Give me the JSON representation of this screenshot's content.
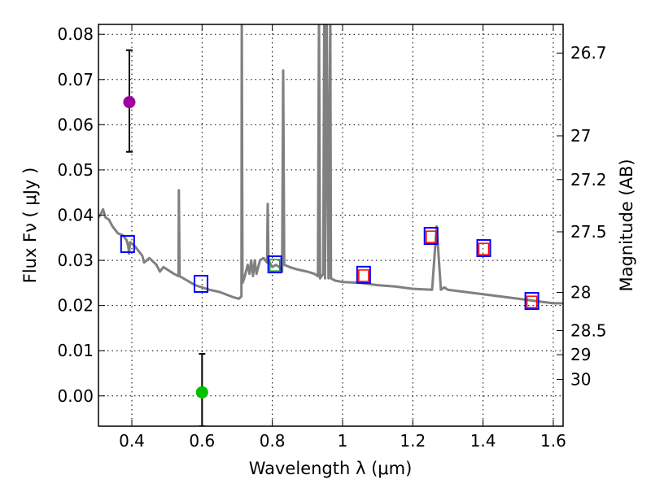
{
  "chart_data": {
    "type": "line",
    "xlabel": "Wavelength  λ (μm)",
    "ylabel": "Flux  Fν  ( μJy )",
    "ylabel_right": "Magnitude (AB)",
    "xlim": [
      0.305,
      1.628
    ],
    "ylim": [
      -0.0067,
      0.0822
    ],
    "grid": true,
    "xticks": [
      0.4,
      0.6,
      0.8,
      1.0,
      1.2,
      1.4,
      1.6
    ],
    "xtick_labels": [
      "0.4",
      "0.6",
      "0.8",
      "1",
      "1.2",
      "1.4",
      "1.6"
    ],
    "yticks": [
      0.0,
      0.01,
      0.02,
      0.03,
      0.04,
      0.05,
      0.06,
      0.07,
      0.08
    ],
    "ytick_labels": [
      "0.00",
      "0.01",
      "0.02",
      "0.03",
      "0.04",
      "0.05",
      "0.06",
      "0.07",
      "0.08"
    ],
    "mag_ticks": [
      26.7,
      27,
      27.2,
      27.5,
      28,
      28.5,
      29,
      30
    ],
    "mag_tick_labels": [
      "26.7",
      "27",
      "27.2",
      "27.5",
      "28",
      "28.5",
      "29",
      "30"
    ],
    "spectrum": {
      "name": "model spectrum",
      "color": "#808080",
      "x": [
        0.305,
        0.31,
        0.318,
        0.325,
        0.335,
        0.345,
        0.36,
        0.375,
        0.385,
        0.39,
        0.392,
        0.395,
        0.41,
        0.43,
        0.435,
        0.45,
        0.47,
        0.48,
        0.49,
        0.52,
        0.533,
        0.534,
        0.536,
        0.58,
        0.62,
        0.65,
        0.69,
        0.705,
        0.712,
        0.713,
        0.715,
        0.72,
        0.73,
        0.735,
        0.74,
        0.745,
        0.75,
        0.755,
        0.765,
        0.775,
        0.785,
        0.787,
        0.789,
        0.8,
        0.81,
        0.82,
        0.828,
        0.831,
        0.834,
        0.85,
        0.87,
        0.9,
        0.92,
        0.93,
        0.933,
        0.936,
        0.945,
        0.948,
        0.95,
        0.955,
        0.96,
        0.965,
        0.967,
        0.98,
        1.0,
        1.05,
        1.1,
        1.15,
        1.2,
        1.255,
        1.268,
        1.28,
        1.29,
        1.3,
        1.4,
        1.5,
        1.55,
        1.6,
        1.628
      ],
      "y": [
        0.0395,
        0.04,
        0.0413,
        0.0395,
        0.039,
        0.0375,
        0.036,
        0.0355,
        0.0345,
        0.033,
        0.0315,
        0.034,
        0.033,
        0.031,
        0.0295,
        0.0305,
        0.029,
        0.0275,
        0.0285,
        0.027,
        0.0265,
        0.0455,
        0.0265,
        0.0245,
        0.0235,
        0.023,
        0.0218,
        0.0215,
        0.022,
        0.085,
        0.025,
        0.026,
        0.029,
        0.027,
        0.03,
        0.0265,
        0.03,
        0.027,
        0.03,
        0.0305,
        0.0295,
        0.0425,
        0.03,
        0.0285,
        0.029,
        0.0285,
        0.0275,
        0.072,
        0.029,
        0.0285,
        0.028,
        0.0275,
        0.027,
        0.0265,
        0.085,
        0.026,
        0.027,
        0.085,
        0.026,
        0.085,
        0.026,
        0.085,
        0.026,
        0.0255,
        0.0252,
        0.025,
        0.0245,
        0.0242,
        0.0237,
        0.0235,
        0.0375,
        0.0235,
        0.024,
        0.0235,
        0.0225,
        0.0215,
        0.021,
        0.0205,
        0.0205
      ]
    },
    "photometry": [
      {
        "name": "purple point",
        "x": 0.393,
        "y": 0.065,
        "yerr_low": 0.054,
        "yerr_high": 0.0765,
        "color": "#a000a0"
      },
      {
        "name": "green point",
        "x": 0.6,
        "y": 0.0008,
        "yerr_low": -0.0067,
        "yerr_high": 0.0093,
        "color": "#00c000"
      }
    ],
    "model_squares": {
      "color": "#0000ff",
      "x": [
        0.388,
        0.597,
        0.807,
        1.06,
        1.252,
        1.402,
        1.539
      ],
      "y": [
        0.0336,
        0.0248,
        0.0291,
        0.0268,
        0.0354,
        0.0327,
        0.021
      ]
    },
    "inner_squares": [
      {
        "x": 0.807,
        "y": 0.0289,
        "color": "#00b000"
      },
      {
        "x": 1.06,
        "y": 0.0266,
        "color": "#ff0000"
      },
      {
        "x": 1.252,
        "y": 0.0352,
        "color": "#ff0000"
      },
      {
        "x": 1.402,
        "y": 0.0325,
        "color": "#ff0000"
      },
      {
        "x": 1.539,
        "y": 0.0208,
        "color": "#ff0000"
      }
    ]
  }
}
